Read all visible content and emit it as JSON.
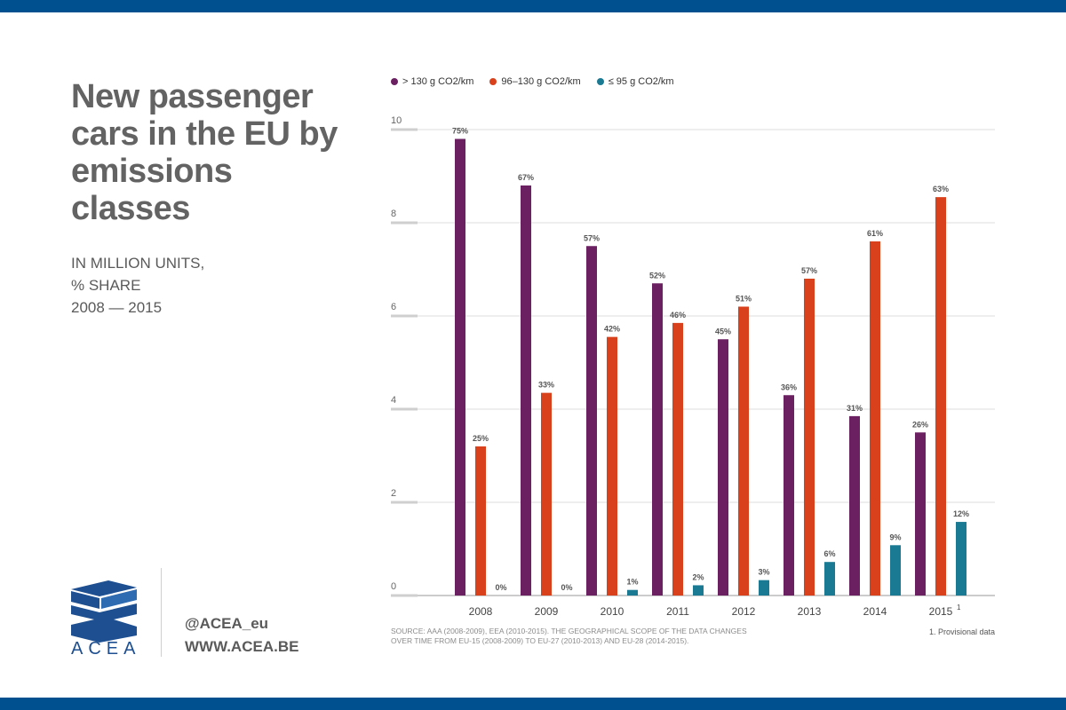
{
  "header": {
    "title": "New passenger cars in the EU by emissions classes",
    "subtitle_lines": [
      "IN MILLION UNITS,",
      "% SHARE",
      "2008 — 2015"
    ]
  },
  "brand": {
    "logo_text": "ACEA",
    "twitter": "@ACEA_eu",
    "website": "WWW.ACEA.BE",
    "colors": {
      "brand_blue": "#00508f",
      "logo_blue": "#1d4f91"
    }
  },
  "notes": {
    "source_label": "SOURCE:",
    "source_text": "AAA (2008-2009), EEA (2010-2015). THE GEOGRAPHICAL SCOPE OF THE DATA CHANGES OVER TIME FROM EU-15 (2008-2009) TO EU-27 (2010-2013) AND EU-28 (2014-2015).",
    "footnote": "1. Provisional data"
  },
  "chart_data": {
    "type": "bar",
    "title": "New passenger cars in the EU by emissions classes",
    "categories": [
      "2008",
      "2009",
      "2010",
      "2011",
      "2012",
      "2013",
      "2014",
      "2015"
    ],
    "category_superscripts": [
      "",
      "",
      "",
      "",
      "",
      "",
      "",
      "1"
    ],
    "ylim": [
      0,
      10
    ],
    "yticks": [
      0,
      2,
      4,
      6,
      8,
      10
    ],
    "grid": true,
    "legend_position": "top-left",
    "series": [
      {
        "name": "> 130 g CO2/km",
        "color": "#6b2161",
        "values": [
          9.8,
          8.8,
          7.5,
          6.7,
          5.5,
          4.3,
          3.85,
          3.5
        ],
        "labels": [
          "75%",
          "67%",
          "57%",
          "52%",
          "45%",
          "36%",
          "31%",
          "26%"
        ]
      },
      {
        "name": "96–130 g CO2/km",
        "color": "#d9411d",
        "values": [
          3.2,
          4.35,
          5.55,
          5.85,
          6.2,
          6.8,
          7.6,
          8.55
        ],
        "labels": [
          "25%",
          "33%",
          "42%",
          "46%",
          "51%",
          "57%",
          "61%",
          "63%"
        ]
      },
      {
        "name": "≤ 95 g CO2/km",
        "color": "#1b7a93",
        "values": [
          0,
          0,
          0.12,
          0.22,
          0.33,
          0.72,
          1.08,
          1.58
        ],
        "labels": [
          "0%",
          "0%",
          "1%",
          "2%",
          "3%",
          "6%",
          "9%",
          "12%"
        ]
      }
    ]
  }
}
